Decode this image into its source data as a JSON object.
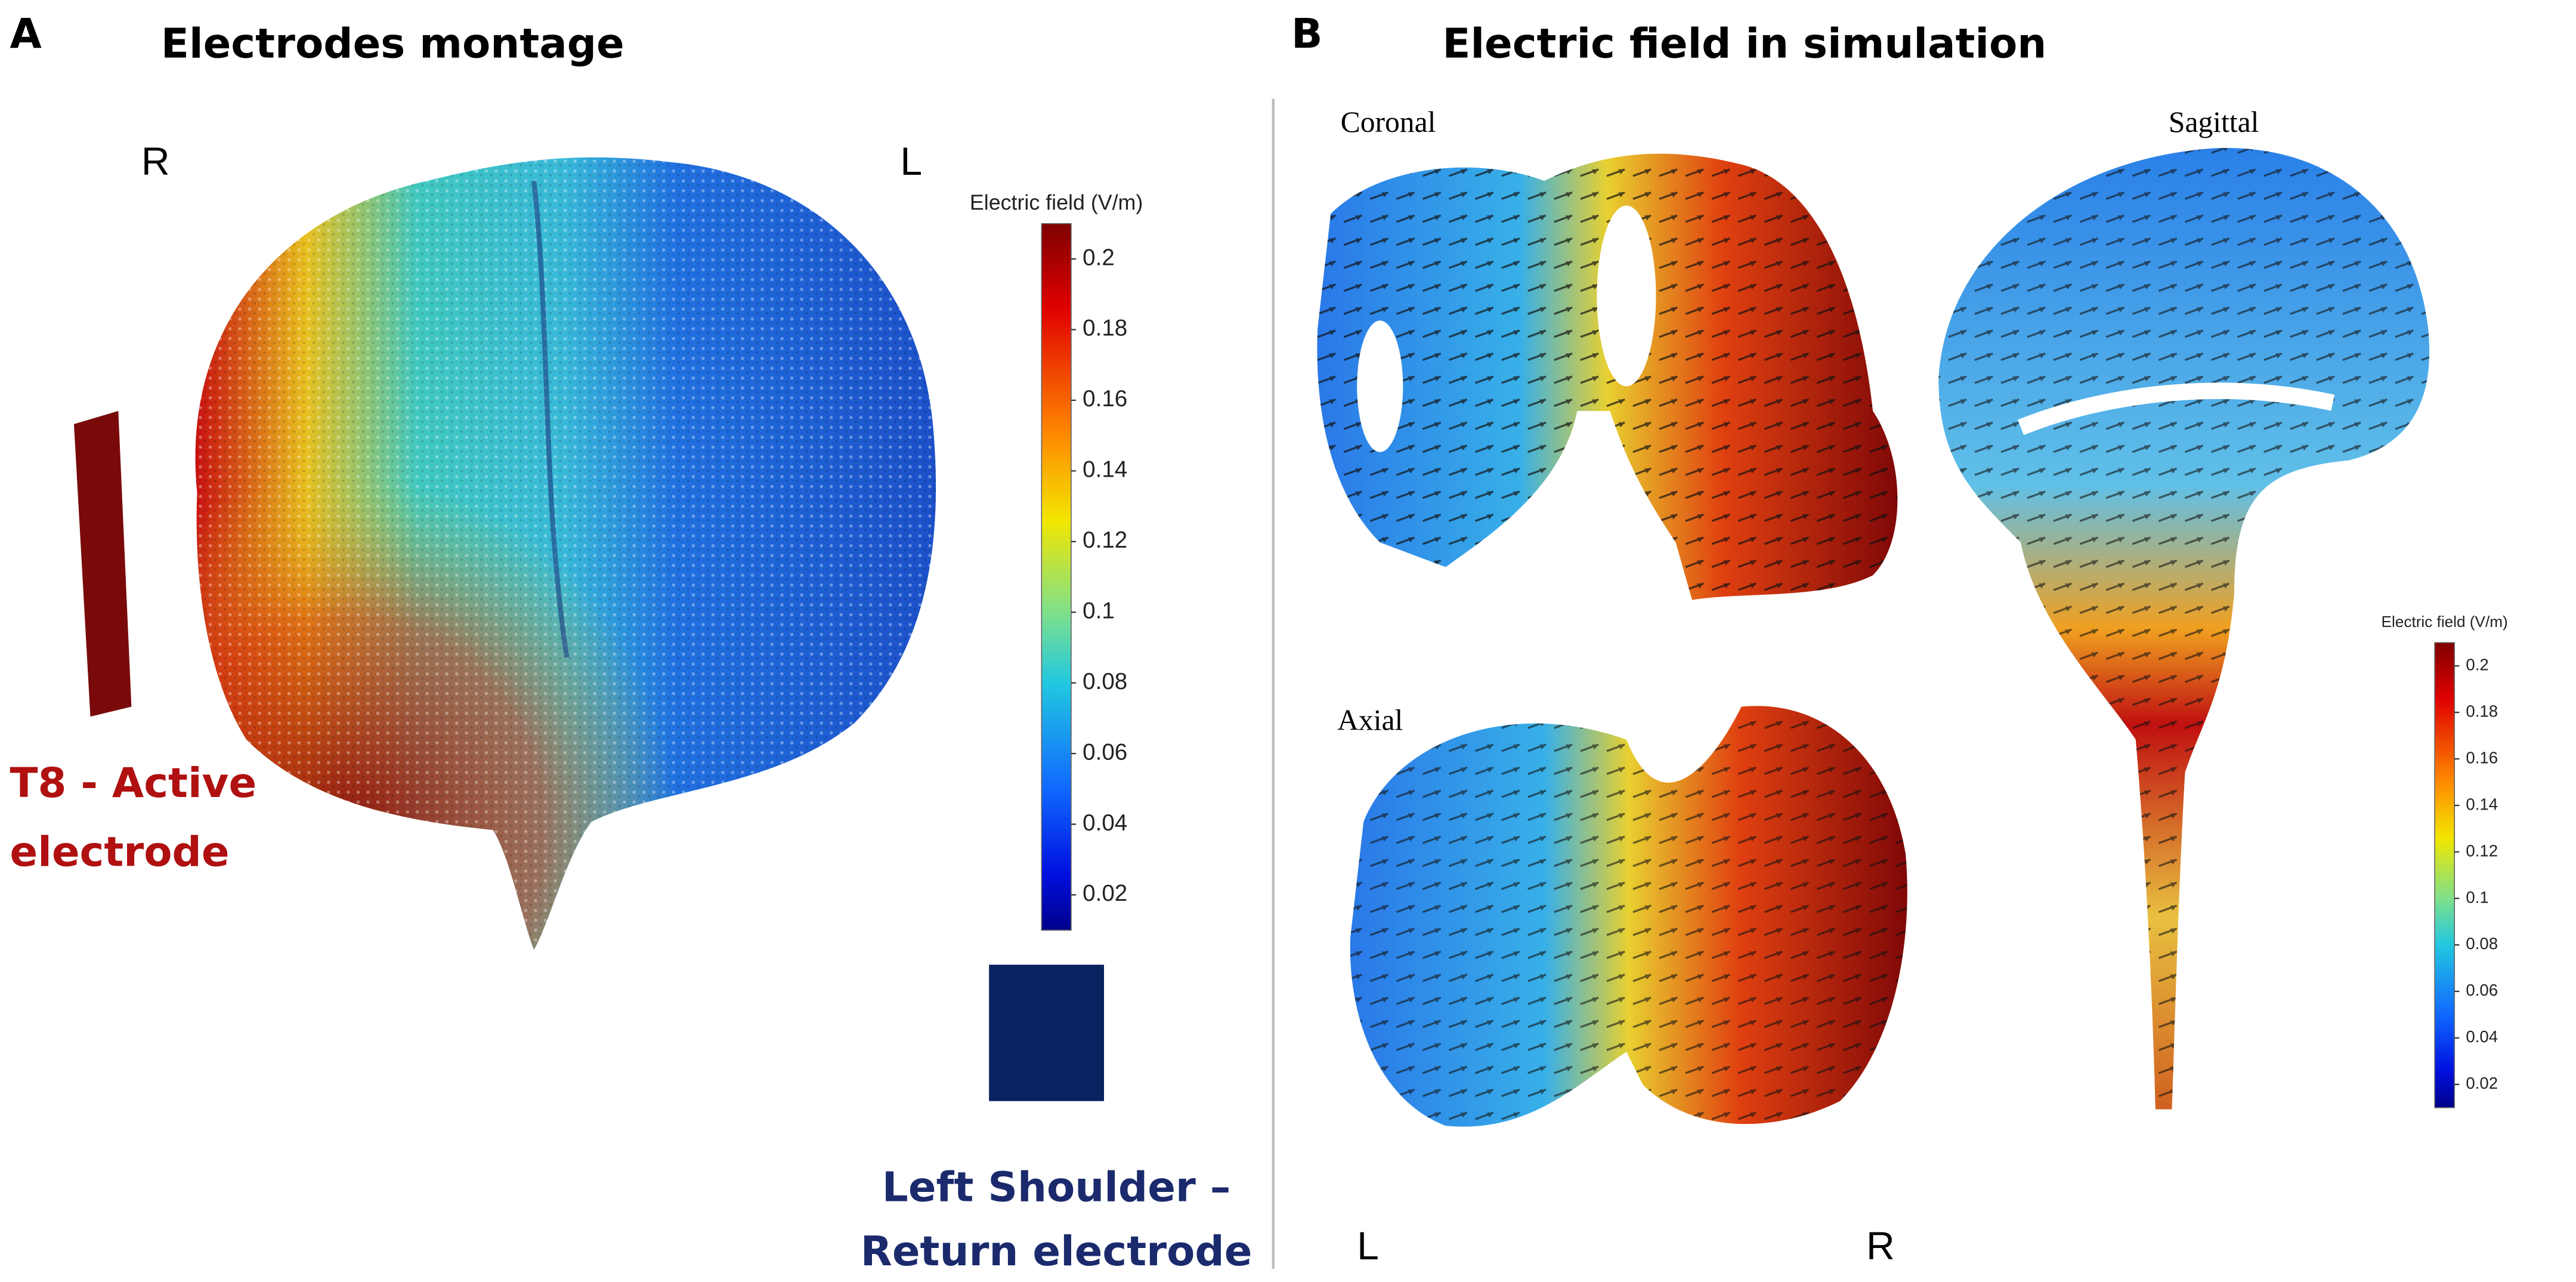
{
  "panel_a": {
    "label": "A",
    "title": "Electrodes montage",
    "orientation_left": "R",
    "orientation_right": "L",
    "active_electrode": [
      "T8 - Active",
      "electrode"
    ],
    "return_electrode": [
      "Left Shoulder –",
      "Return electrode"
    ],
    "colorbar": {
      "title": "Electric field (V/m)",
      "lim": [
        0.01,
        0.21
      ],
      "ticks": [
        0.2,
        0.18,
        0.16,
        0.14,
        0.12,
        0.1,
        0.08,
        0.06,
        0.04,
        0.02
      ]
    }
  },
  "panel_b": {
    "label": "B",
    "title": "Electric field in simulation",
    "views": {
      "coronal": "Coronal",
      "sagittal": "Sagittal",
      "axial": "Axial"
    },
    "orientation_left": "L",
    "orientation_right": "R",
    "colorbar": {
      "title": "Electric field (V/m)",
      "lim": [
        0.01,
        0.21
      ],
      "ticks": [
        0.2,
        0.18,
        0.16,
        0.14,
        0.12,
        0.1,
        0.08,
        0.06,
        0.04,
        0.02
      ]
    }
  }
}
